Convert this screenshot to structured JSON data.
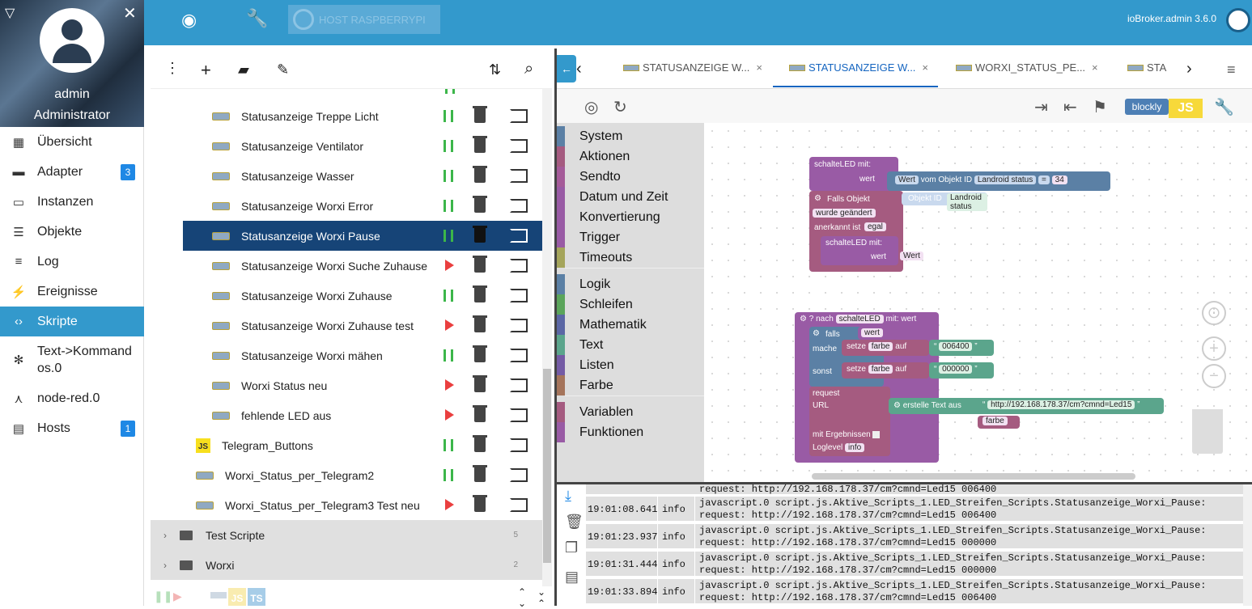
{
  "user": {
    "name": "admin",
    "role": "Administrator"
  },
  "nav": [
    {
      "label": "Übersicht",
      "icon": "grid-icon"
    },
    {
      "label": "Adapter",
      "icon": "store-icon",
      "badge": "3"
    },
    {
      "label": "Instanzen",
      "icon": "instances-icon"
    },
    {
      "label": "Objekte",
      "icon": "list-icon"
    },
    {
      "label": "Log",
      "icon": "log-icon"
    },
    {
      "label": "Ereignisse",
      "icon": "bolt-icon"
    },
    {
      "label": "Skripte",
      "icon": "code-icon",
      "active": true
    },
    {
      "label": "Text->Kommandos.0",
      "icon": "snowflake-icon"
    },
    {
      "label": "node-red.0",
      "icon": "node-icon"
    },
    {
      "label": "Hosts",
      "icon": "hosts-icon",
      "badge": "1"
    }
  ],
  "topbar": {
    "host": "HOST RASPBERRYPI",
    "version": "ioBroker.admin 3.6.0"
  },
  "scripts": [
    {
      "name": "Statusanzeige Treppe Licht",
      "state": "running",
      "icon": "blockly"
    },
    {
      "name": "Statusanzeige Ventilator",
      "state": "running",
      "icon": "blockly"
    },
    {
      "name": "Statusanzeige Wasser",
      "state": "running",
      "icon": "blockly"
    },
    {
      "name": "Statusanzeige Worxi Error",
      "state": "running",
      "icon": "blockly"
    },
    {
      "name": "Statusanzeige Worxi Pause",
      "state": "running",
      "icon": "blockly",
      "selected": true
    },
    {
      "name": "Statusanzeige Worxi Suche Zuhause",
      "state": "stopped",
      "icon": "blockly"
    },
    {
      "name": "Statusanzeige Worxi Zuhause",
      "state": "running",
      "icon": "blockly"
    },
    {
      "name": "Statusanzeige Worxi Zuhause test",
      "state": "stopped",
      "icon": "blockly"
    },
    {
      "name": "Statusanzeige Worxi mähen",
      "state": "running",
      "icon": "blockly"
    },
    {
      "name": "Worxi Status neu",
      "state": "stopped",
      "icon": "blockly"
    },
    {
      "name": "fehlende LED aus",
      "state": "stopped",
      "icon": "blockly"
    },
    {
      "name": "Telegram_Buttons",
      "state": "running",
      "icon": "js",
      "indent": 0
    },
    {
      "name": "Worxi_Status_per_Telegram2",
      "state": "running",
      "icon": "blockly",
      "indent": 0
    },
    {
      "name": "Worxi_Status_per_Telegram3 Test neu",
      "state": "stopped",
      "icon": "blockly",
      "indent": 0
    }
  ],
  "folders": [
    {
      "name": "Test Scripte",
      "count": "5"
    },
    {
      "name": "Worxi",
      "count": "2"
    }
  ],
  "tabs": [
    {
      "label": "STATUSANZEIGE W..."
    },
    {
      "label": "STATUSANZEIGE W...",
      "active": true
    },
    {
      "label": "WORXI_STATUS_PE..."
    },
    {
      "label": "STA"
    }
  ],
  "editor": {
    "blockly_label": "blockly",
    "js_label": "JS"
  },
  "toolbox": [
    "System",
    "Aktionen",
    "Sendto",
    "Datum und Zeit",
    "Konvertierung",
    "Trigger",
    "Timeouts",
    "Logik",
    "Schleifen",
    "Mathematik",
    "Text",
    "Listen",
    "Farbe",
    "Variablen",
    "Funktionen"
  ],
  "toolbox_colors": [
    "#5b80a5",
    "#a55b80",
    "#a55b99",
    "#995ba5",
    "#995ba5",
    "#995ba5",
    "#a5a55b",
    "#5b80a5",
    "#5ba55b",
    "#5b67a5",
    "#5ba58c",
    "#745ba5",
    "#a5745b",
    "#a55b80",
    "#995ba5"
  ],
  "blocks": {
    "call1": "schalteLED",
    "mit": "mit:",
    "wert": "wert",
    "wert_dd": "Wert",
    "vom_objekt": "vom Objekt ID",
    "landroid": "Landroid status",
    "eq": "=",
    "num": "34",
    "falls_objekt": "Falls Objekt",
    "objekt_id": "Objekt ID",
    "wurde": "wurde geändert",
    "anerkannt": "anerkannt ist",
    "egal": "egal",
    "nach": "nach",
    "mit_wert": "mit: wert",
    "falls": "falls",
    "mache": "mache",
    "sonst": "sonst",
    "setze": "setze",
    "farbe": "farbe",
    "auf": "auf",
    "c1": "006400",
    "c2": "000000",
    "request": "request",
    "url": "URL",
    "erstelle": "erstelle Text aus",
    "urltext": "http://192.168.178.37/cm?cmnd=Led15",
    "mit_erg": "mit Ergebnissen",
    "loglevel": "Loglevel",
    "info": "info"
  },
  "logs": [
    {
      "time": "19:01:08.641",
      "level": "info",
      "line1": "javascript.0 script.js.Aktive_Scripts_1.LED_Streifen_Scripts.Statusanzeige_Worxi_Pause:",
      "line2": "request: http://192.168.178.37/cm?cmnd=Led15 006400"
    },
    {
      "time": "19:01:23.937",
      "level": "info",
      "line1": "javascript.0 script.js.Aktive_Scripts_1.LED_Streifen_Scripts.Statusanzeige_Worxi_Pause:",
      "line2": "request: http://192.168.178.37/cm?cmnd=Led15 000000"
    },
    {
      "time": "19:01:31.444",
      "level": "info",
      "line1": "javascript.0 script.js.Aktive_Scripts_1.LED_Streifen_Scripts.Statusanzeige_Worxi_Pause:",
      "line2": "request: http://192.168.178.37/cm?cmnd=Led15 000000"
    },
    {
      "time": "19:01:33.894",
      "level": "info",
      "line1": "javascript.0 script.js.Aktive_Scripts_1.LED_Streifen_Scripts.Statusanzeige_Worxi_Pause:",
      "line2": "request: http://192.168.178.37/cm?cmnd=Led15 006400"
    }
  ],
  "log_partial": "request: http://192.168.178.37/cm?cmnd=Led15 006400"
}
